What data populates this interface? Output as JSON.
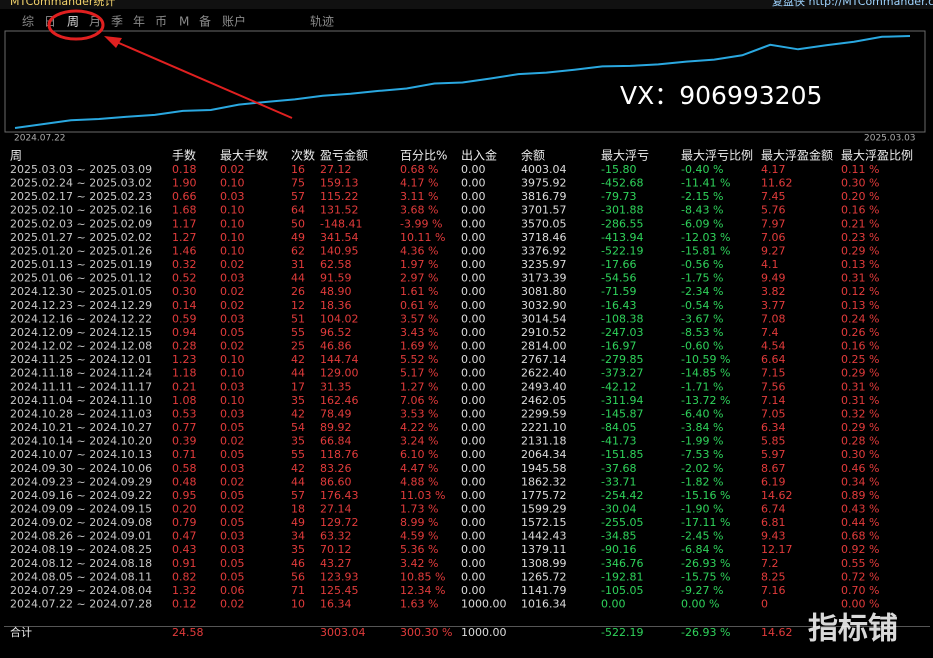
{
  "header": {
    "title": "MTCommander统计",
    "site": "复盘侠 http://MTCommander.com"
  },
  "tabs": [
    "综",
    "日",
    "周",
    "月",
    "季",
    "年",
    "币",
    "M",
    "备",
    "账户",
    "轨迹"
  ],
  "chart": {
    "start_label": "2024.07.22",
    "end_label": "2025.03.03",
    "overlay": "VX：906993205"
  },
  "table": {
    "columns": [
      "周",
      "手数",
      "最大手数",
      "次数",
      "盈亏金额",
      "百分比%",
      "出入金",
      "余额",
      "最大浮亏",
      "最大浮亏比例",
      "最大浮盈金额",
      "最大浮盈比例"
    ],
    "rows": [
      [
        "2025.03.03 ~ 2025.03.09",
        "0.18",
        "0.02",
        "16",
        "27.12",
        "0.68 %",
        "0.00",
        "4003.04",
        "-15.80",
        "-0.40 %",
        "4.17",
        "0.11 %"
      ],
      [
        "2025.02.24 ~ 2025.03.02",
        "1.90",
        "0.10",
        "75",
        "159.13",
        "4.17 %",
        "0.00",
        "3975.92",
        "-452.68",
        "-11.41 %",
        "11.62",
        "0.30 %"
      ],
      [
        "2025.02.17 ~ 2025.02.23",
        "0.66",
        "0.03",
        "57",
        "115.22",
        "3.11 %",
        "0.00",
        "3816.79",
        "-79.73",
        "-2.15 %",
        "7.45",
        "0.20 %"
      ],
      [
        "2025.02.10 ~ 2025.02.16",
        "1.68",
        "0.10",
        "64",
        "131.52",
        "3.68 %",
        "0.00",
        "3701.57",
        "-301.88",
        "-8.43 %",
        "5.76",
        "0.16 %"
      ],
      [
        "2025.02.03 ~ 2025.02.09",
        "1.17",
        "0.10",
        "50",
        "-148.41",
        "-3.99 %",
        "0.00",
        "3570.05",
        "-286.55",
        "-6.09 %",
        "7.97",
        "0.21 %"
      ],
      [
        "2025.01.27 ~ 2025.02.02",
        "1.27",
        "0.10",
        "49",
        "341.54",
        "10.11 %",
        "0.00",
        "3718.46",
        "-413.94",
        "-12.03 %",
        "7.06",
        "0.23 %"
      ],
      [
        "2025.01.20 ~ 2025.01.26",
        "1.46",
        "0.10",
        "62",
        "140.95",
        "4.36 %",
        "0.00",
        "3376.92",
        "-522.19",
        "-15.81 %",
        "9.27",
        "0.29 %"
      ],
      [
        "2025.01.13 ~ 2025.01.19",
        "0.32",
        "0.02",
        "31",
        "62.58",
        "1.97 %",
        "0.00",
        "3235.97",
        "-17.66",
        "-0.56 %",
        "4.1",
        "0.13 %"
      ],
      [
        "2025.01.06 ~ 2025.01.12",
        "0.52",
        "0.03",
        "44",
        "91.59",
        "2.97 %",
        "0.00",
        "3173.39",
        "-54.56",
        "-1.75 %",
        "9.49",
        "0.31 %"
      ],
      [
        "2024.12.30 ~ 2025.01.05",
        "0.30",
        "0.02",
        "26",
        "48.90",
        "1.61 %",
        "0.00",
        "3081.80",
        "-71.59",
        "-2.34 %",
        "3.82",
        "0.12 %"
      ],
      [
        "2024.12.23 ~ 2024.12.29",
        "0.14",
        "0.02",
        "12",
        "18.36",
        "0.61 %",
        "0.00",
        "3032.90",
        "-16.43",
        "-0.54 %",
        "3.77",
        "0.13 %"
      ],
      [
        "2024.12.16 ~ 2024.12.22",
        "0.59",
        "0.03",
        "51",
        "104.02",
        "3.57 %",
        "0.00",
        "3014.54",
        "-108.38",
        "-3.67 %",
        "7.08",
        "0.24 %"
      ],
      [
        "2024.12.09 ~ 2024.12.15",
        "0.94",
        "0.05",
        "55",
        "96.52",
        "3.43 %",
        "0.00",
        "2910.52",
        "-247.03",
        "-8.53 %",
        "7.4",
        "0.26 %"
      ],
      [
        "2024.12.02 ~ 2024.12.08",
        "0.28",
        "0.02",
        "25",
        "46.86",
        "1.69 %",
        "0.00",
        "2814.00",
        "-16.97",
        "-0.60 %",
        "4.54",
        "0.16 %"
      ],
      [
        "2024.11.25 ~ 2024.12.01",
        "1.23",
        "0.10",
        "42",
        "144.74",
        "5.52 %",
        "0.00",
        "2767.14",
        "-279.85",
        "-10.59 %",
        "6.64",
        "0.25 %"
      ],
      [
        "2024.11.18 ~ 2024.11.24",
        "1.18",
        "0.10",
        "44",
        "129.00",
        "5.17 %",
        "0.00",
        "2622.40",
        "-373.27",
        "-14.85 %",
        "7.15",
        "0.29 %"
      ],
      [
        "2024.11.11 ~ 2024.11.17",
        "0.21",
        "0.03",
        "17",
        "31.35",
        "1.27 %",
        "0.00",
        "2493.40",
        "-42.12",
        "-1.71 %",
        "7.56",
        "0.31 %"
      ],
      [
        "2024.11.04 ~ 2024.11.10",
        "1.08",
        "0.10",
        "35",
        "162.46",
        "7.06 %",
        "0.00",
        "2462.05",
        "-311.94",
        "-13.72 %",
        "7.14",
        "0.31 %"
      ],
      [
        "2024.10.28 ~ 2024.11.03",
        "0.53",
        "0.03",
        "42",
        "78.49",
        "3.53 %",
        "0.00",
        "2299.59",
        "-145.87",
        "-6.40 %",
        "7.05",
        "0.32 %"
      ],
      [
        "2024.10.21 ~ 2024.10.27",
        "0.77",
        "0.05",
        "54",
        "89.92",
        "4.22 %",
        "0.00",
        "2221.10",
        "-84.05",
        "-3.84 %",
        "6.34",
        "0.29 %"
      ],
      [
        "2024.10.14 ~ 2024.10.20",
        "0.39",
        "0.02",
        "35",
        "66.84",
        "3.24 %",
        "0.00",
        "2131.18",
        "-41.73",
        "-1.99 %",
        "5.85",
        "0.28 %"
      ],
      [
        "2024.10.07 ~ 2024.10.13",
        "0.71",
        "0.05",
        "55",
        "118.76",
        "6.10 %",
        "0.00",
        "2064.34",
        "-151.85",
        "-7.53 %",
        "5.97",
        "0.30 %"
      ],
      [
        "2024.09.30 ~ 2024.10.06",
        "0.58",
        "0.03",
        "42",
        "83.26",
        "4.47 %",
        "0.00",
        "1945.58",
        "-37.68",
        "-2.02 %",
        "8.67",
        "0.46 %"
      ],
      [
        "2024.09.23 ~ 2024.09.29",
        "0.48",
        "0.02",
        "44",
        "86.60",
        "4.88 %",
        "0.00",
        "1862.32",
        "-33.71",
        "-1.82 %",
        "6.19",
        "0.34 %"
      ],
      [
        "2024.09.16 ~ 2024.09.22",
        "0.95",
        "0.05",
        "57",
        "176.43",
        "11.03 %",
        "0.00",
        "1775.72",
        "-254.42",
        "-15.16 %",
        "14.62",
        "0.89 %"
      ],
      [
        "2024.09.09 ~ 2024.09.15",
        "0.20",
        "0.02",
        "18",
        "27.14",
        "1.73 %",
        "0.00",
        "1599.29",
        "-30.04",
        "-1.90 %",
        "6.74",
        "0.43 %"
      ],
      [
        "2024.09.02 ~ 2024.09.08",
        "0.79",
        "0.05",
        "49",
        "129.72",
        "8.99 %",
        "0.00",
        "1572.15",
        "-255.05",
        "-17.11 %",
        "6.81",
        "0.44 %"
      ],
      [
        "2024.08.26 ~ 2024.09.01",
        "0.47",
        "0.03",
        "34",
        "63.32",
        "4.59 %",
        "0.00",
        "1442.43",
        "-34.85",
        "-2.45 %",
        "9.43",
        "0.68 %"
      ],
      [
        "2024.08.19 ~ 2024.08.25",
        "0.43",
        "0.03",
        "35",
        "70.12",
        "5.36 %",
        "0.00",
        "1379.11",
        "-90.16",
        "-6.84 %",
        "12.17",
        "0.92 %"
      ],
      [
        "2024.08.12 ~ 2024.08.18",
        "0.91",
        "0.05",
        "46",
        "43.27",
        "3.42 %",
        "0.00",
        "1308.99",
        "-346.76",
        "-26.93 %",
        "7.2",
        "0.55 %"
      ],
      [
        "2024.08.05 ~ 2024.08.11",
        "0.82",
        "0.05",
        "56",
        "123.93",
        "10.85 %",
        "0.00",
        "1265.72",
        "-192.81",
        "-15.75 %",
        "8.25",
        "0.72 %"
      ],
      [
        "2024.07.29 ~ 2024.08.04",
        "1.32",
        "0.06",
        "71",
        "125.45",
        "12.34 %",
        "0.00",
        "1141.79",
        "-105.05",
        "-9.27 %",
        "7.16",
        "0.70 %"
      ],
      [
        "2024.07.22 ~ 2024.07.28",
        "0.12",
        "0.02",
        "10",
        "16.34",
        "1.63 %",
        "1000.00",
        "1016.34",
        "0.00",
        "0.00 %",
        "0",
        "0.00 %"
      ]
    ],
    "total": [
      "合计",
      "24.58",
      null,
      null,
      "3003.04",
      "300.30 %",
      "1000.00",
      null,
      "-522.19",
      "-26.93 %",
      "14.62",
      null
    ]
  },
  "watermark": "指标铺"
}
